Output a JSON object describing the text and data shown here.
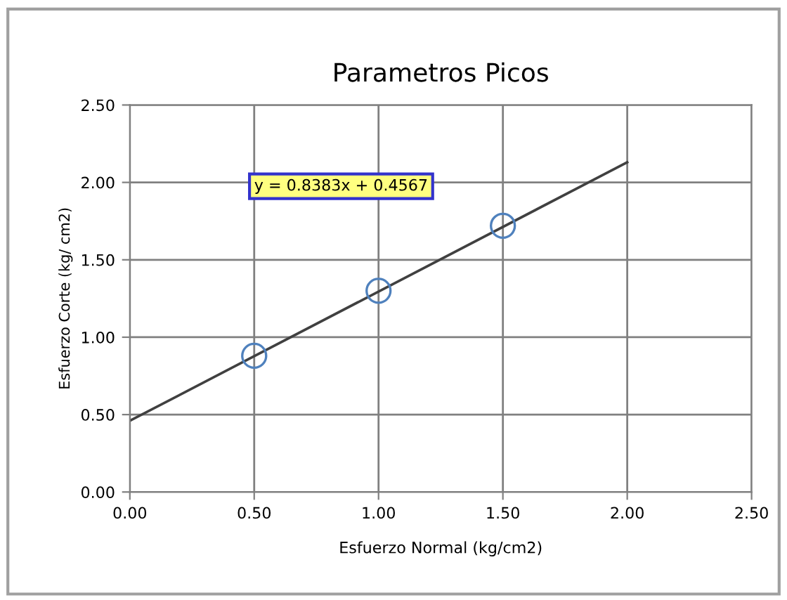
{
  "chart_data": {
    "type": "scatter",
    "title": "Parametros Picos",
    "xlabel": "Esfuerzo Normal (kg/cm2)",
    "ylabel": "Esfuerzo Corte (kg/ cm2)",
    "series": [
      {
        "color": "#4f81bd",
        "marker": "circle",
        "x": [
          0.5,
          1.0,
          1.5
        ],
        "values": [
          0.88,
          1.3,
          1.72
        ]
      },
      {
        "type": "line",
        "color": "#404040",
        "marker": "none",
        "x": [
          0,
          2
        ],
        "values": [
          0.46,
          2.13
        ]
      }
    ],
    "annotations": [
      "y = 0.8383x + 0.4567"
    ],
    "xlim": [
      0,
      2.5
    ],
    "xticks": [
      {
        "value": 0,
        "label": "0.00"
      },
      {
        "value": 0.5,
        "label": "0.50"
      },
      {
        "value": 1,
        "label": "1.00"
      },
      {
        "value": 1.5,
        "label": "1.50"
      },
      {
        "value": 2,
        "label": "2.00"
      },
      {
        "value": 2.5,
        "label": "2.50"
      }
    ],
    "ylim": [
      0,
      2.5
    ],
    "yticks": [
      {
        "value": 0,
        "label": "0.00"
      },
      {
        "value": 0.5,
        "label": "0.50"
      },
      {
        "value": 1,
        "label": "1.00"
      },
      {
        "value": 1.5,
        "label": "1.50"
      },
      {
        "value": 2,
        "label": "2.00"
      },
      {
        "value": 2.5,
        "label": "2.50"
      }
    ],
    "grid": true
  }
}
